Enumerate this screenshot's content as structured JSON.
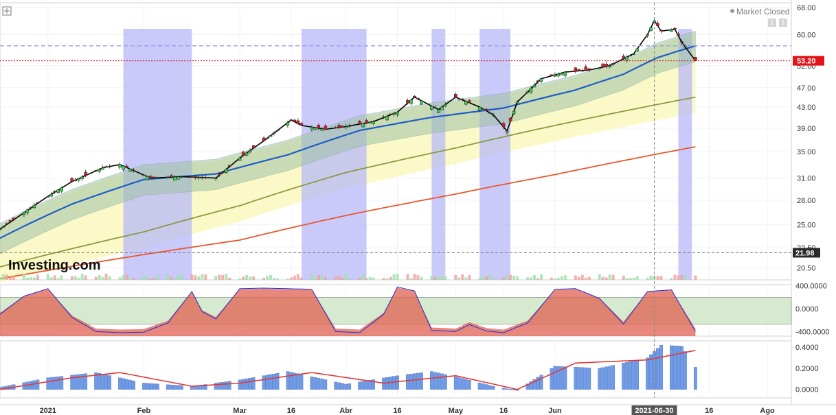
{
  "chart_data": [
    {
      "type": "candlestick",
      "title": "",
      "status": "Market Closed",
      "watermark": "Investing.com",
      "ylim": [
        19.4,
        69.5
      ],
      "y_scale": "log",
      "y_ticks": [
        "68.00",
        "60.00",
        "52.00",
        "47.00",
        "43.00",
        "39.00",
        "35.00",
        "31.00",
        "28.00",
        "25.00",
        "22.50",
        "20.50"
      ],
      "x_ticks": [
        {
          "label": "2021",
          "x": "2021-01-04"
        },
        {
          "label": "Feb",
          "x": "2021-02-01"
        },
        {
          "label": "Mar",
          "x": "2021-03-01"
        },
        {
          "label": "16",
          "x": "2021-03-16"
        },
        {
          "label": "Abr",
          "x": "2021-04-01"
        },
        {
          "label": "16",
          "x": "2021-04-16"
        },
        {
          "label": "May",
          "x": "2021-05-03"
        },
        {
          "label": "16",
          "x": "2021-05-17"
        },
        {
          "label": "Jun",
          "x": "2021-06-01"
        },
        {
          "label": "16",
          "x": "2021-07-16"
        },
        {
          "label": "Ago",
          "x": "2021-08-02"
        }
      ],
      "crosshair": {
        "date_label": "2021-06-30",
        "price_label": "21.98"
      },
      "last_price": {
        "value": 53.2,
        "label": "53.20"
      },
      "reference_price": 57.0,
      "close_trend": {
        "dates": [
          "2020-12-21",
          "2021-01-04",
          "2021-01-11",
          "2021-01-20",
          "2021-01-25",
          "2021-02-03",
          "2021-02-12",
          "2021-02-22",
          "2021-03-01",
          "2021-03-08",
          "2021-03-16",
          "2021-03-19",
          "2021-03-26",
          "2021-04-01",
          "2021-04-09",
          "2021-04-16",
          "2021-04-21",
          "2021-04-28",
          "2021-05-03",
          "2021-05-10",
          "2021-05-14",
          "2021-05-18",
          "2021-05-21",
          "2021-05-28",
          "2021-06-04",
          "2021-06-11",
          "2021-06-17",
          "2021-06-24",
          "2021-06-28",
          "2021-06-30",
          "2021-07-02",
          "2021-07-06",
          "2021-07-08",
          "2021-07-12"
        ],
        "values": [
          24.5,
          28.5,
          30.5,
          32.5,
          33.0,
          31.0,
          31.2,
          31.0,
          34.0,
          36.8,
          40.5,
          39.5,
          38.8,
          39.3,
          40.2,
          42.0,
          45.0,
          42.5,
          45.0,
          43.0,
          41.5,
          38.5,
          44.0,
          49.0,
          50.5,
          51.0,
          52.0,
          55.0,
          60.0,
          64.0,
          61.0,
          61.5,
          58.0,
          53.2
        ]
      },
      "series": [
        {
          "name": "",
          "kind": "ma_fast",
          "color": "#1e5cc8",
          "dates": [
            "2020-12-21",
            "2021-01-11",
            "2021-02-01",
            "2021-02-22",
            "2021-03-15",
            "2021-04-05",
            "2021-04-26",
            "2021-05-17",
            "2021-06-07",
            "2021-06-21",
            "2021-07-01",
            "2021-07-12"
          ],
          "values": [
            23.5,
            27.5,
            30.8,
            31.6,
            34.5,
            38.6,
            41.0,
            42.8,
            46.5,
            50.0,
            54.0,
            57.0
          ]
        },
        {
          "name": "",
          "kind": "ma_mid",
          "color": "#8a9a40",
          "dates": [
            "2020-12-21",
            "2021-02-01",
            "2021-03-01",
            "2021-04-01",
            "2021-05-03",
            "2021-06-01",
            "2021-07-12"
          ],
          "values": [
            20.6,
            24.2,
            27.3,
            31.8,
            35.6,
            39.5,
            45.0
          ]
        },
        {
          "name": "",
          "kind": "ma_slow",
          "color": "#e8572a",
          "dates": [
            "2020-12-21",
            "2021-02-01",
            "2021-03-01",
            "2021-04-01",
            "2021-05-03",
            "2021-06-01",
            "2021-07-12"
          ],
          "values": [
            19.5,
            21.8,
            23.3,
            26.1,
            28.8,
            31.5,
            35.8
          ]
        }
      ],
      "shaded_regions": [
        {
          "start": "2021-01-26",
          "end": "2021-02-15",
          "color": "#b8b8f8"
        },
        {
          "start": "2021-03-19",
          "end": "2021-04-07",
          "color": "#b8b8f8"
        },
        {
          "start": "2021-04-26",
          "end": "2021-04-30",
          "color": "#b8b8f8"
        },
        {
          "start": "2021-05-10",
          "end": "2021-05-19",
          "color": "#b8b8f8"
        },
        {
          "start": "2021-07-07",
          "end": "2021-07-11",
          "color": "#b8b8f8"
        }
      ]
    },
    {
      "type": "line",
      "title": "",
      "ylim": [
        -480,
        420
      ],
      "y_ticks": [
        "400.0000",
        "0.0000",
        "-400.0000"
      ],
      "band": [
        -270,
        200
      ],
      "series": [
        {
          "name": "",
          "color": "#1e2bd8",
          "dates": [
            "2020-12-21",
            "2020-12-28",
            "2021-01-04",
            "2021-01-11",
            "2021-01-18",
            "2021-01-25",
            "2021-02-01",
            "2021-02-08",
            "2021-02-15",
            "2021-02-18",
            "2021-02-22",
            "2021-03-01",
            "2021-03-08",
            "2021-03-15",
            "2021-03-22",
            "2021-03-29",
            "2021-04-05",
            "2021-04-12",
            "2021-04-16",
            "2021-04-21",
            "2021-04-26",
            "2021-05-03",
            "2021-05-07",
            "2021-05-12",
            "2021-05-17",
            "2021-05-24",
            "2021-06-01",
            "2021-06-07",
            "2021-06-14",
            "2021-06-21",
            "2021-06-28",
            "2021-07-05",
            "2021-07-12"
          ],
          "values": [
            -100,
            220,
            350,
            -150,
            -400,
            -420,
            -410,
            -250,
            300,
            -50,
            -180,
            350,
            360,
            350,
            340,
            -400,
            -420,
            -100,
            380,
            310,
            -380,
            -400,
            -280,
            -390,
            -420,
            -250,
            340,
            350,
            180,
            -270,
            300,
            330,
            -400
          ]
        }
      ]
    },
    {
      "type": "bar",
      "title": "",
      "ylim": [
        -0.08,
        0.46
      ],
      "y_ticks": [
        "0.4000",
        "0.2000",
        "0.0000"
      ],
      "bars": {
        "name": "",
        "color": "#6f9be8",
        "dates": [
          "2020-12-21",
          "2021-01-04",
          "2021-01-18",
          "2021-02-01",
          "2021-02-15",
          "2021-03-01",
          "2021-03-15",
          "2021-04-01",
          "2021-04-16",
          "2021-04-26",
          "2021-05-03",
          "2021-05-14",
          "2021-05-21",
          "2021-06-01",
          "2021-06-14",
          "2021-06-28",
          "2021-07-02",
          "2021-07-08",
          "2021-07-12"
        ],
        "values": [
          0.02,
          0.11,
          0.16,
          0.06,
          0.03,
          0.09,
          0.17,
          0.05,
          0.13,
          0.17,
          0.12,
          0.03,
          -0.01,
          0.22,
          0.2,
          0.3,
          0.42,
          0.41,
          0.21
        ]
      },
      "series": [
        {
          "name": "",
          "color": "#e03a3a",
          "dates": [
            "2020-12-21",
            "2021-01-11",
            "2021-01-25",
            "2021-02-15",
            "2021-03-01",
            "2021-03-22",
            "2021-04-12",
            "2021-05-03",
            "2021-05-21",
            "2021-06-07",
            "2021-06-28",
            "2021-07-12"
          ],
          "values": [
            0.0,
            0.11,
            0.16,
            0.03,
            0.06,
            0.16,
            0.06,
            0.13,
            0.0,
            0.25,
            0.28,
            0.37
          ]
        }
      ]
    }
  ]
}
